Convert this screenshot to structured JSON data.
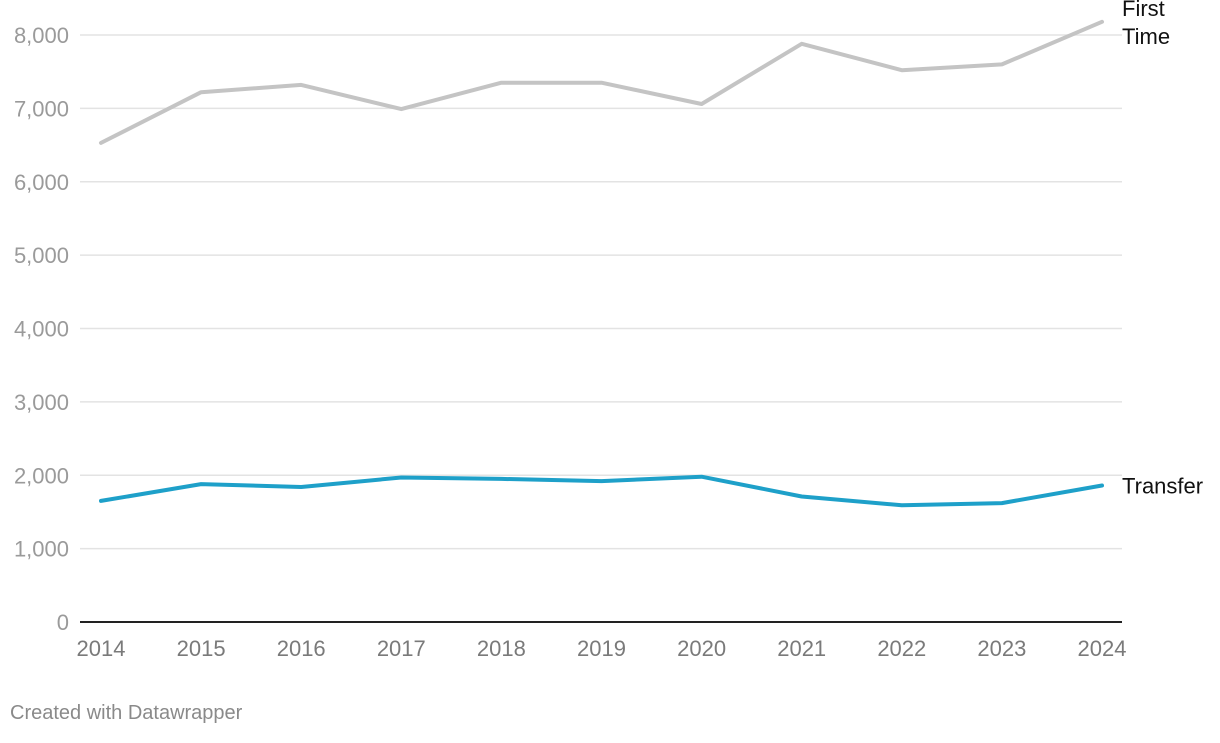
{
  "chart_data": {
    "type": "line",
    "x": [
      "2014",
      "2015",
      "2016",
      "2017",
      "2018",
      "2019",
      "2020",
      "2021",
      "2022",
      "2023",
      "2024"
    ],
    "ylim": [
      0,
      8000
    ],
    "yticks": [
      0,
      1000,
      2000,
      3000,
      4000,
      5000,
      6000,
      7000,
      8000
    ],
    "ytick_labels": [
      "0",
      "1,000",
      "2,000",
      "3,000",
      "4,000",
      "5,000",
      "6,000",
      "7,000",
      "8,000"
    ],
    "grid": true,
    "series": [
      {
        "name": "First Time",
        "label_lines": [
          "First",
          "Time"
        ],
        "color": "#c4c4c4",
        "values": [
          6530,
          7220,
          7320,
          6990,
          7350,
          7350,
          7060,
          7880,
          7520,
          7600,
          8180
        ]
      },
      {
        "name": "Transfer",
        "label_lines": [
          "Transfer"
        ],
        "color": "#1ea0c9",
        "values": [
          1650,
          1880,
          1840,
          1970,
          1950,
          1920,
          1980,
          1710,
          1590,
          1620,
          1860
        ]
      }
    ]
  },
  "footer": {
    "credit": "Created with Datawrapper"
  }
}
